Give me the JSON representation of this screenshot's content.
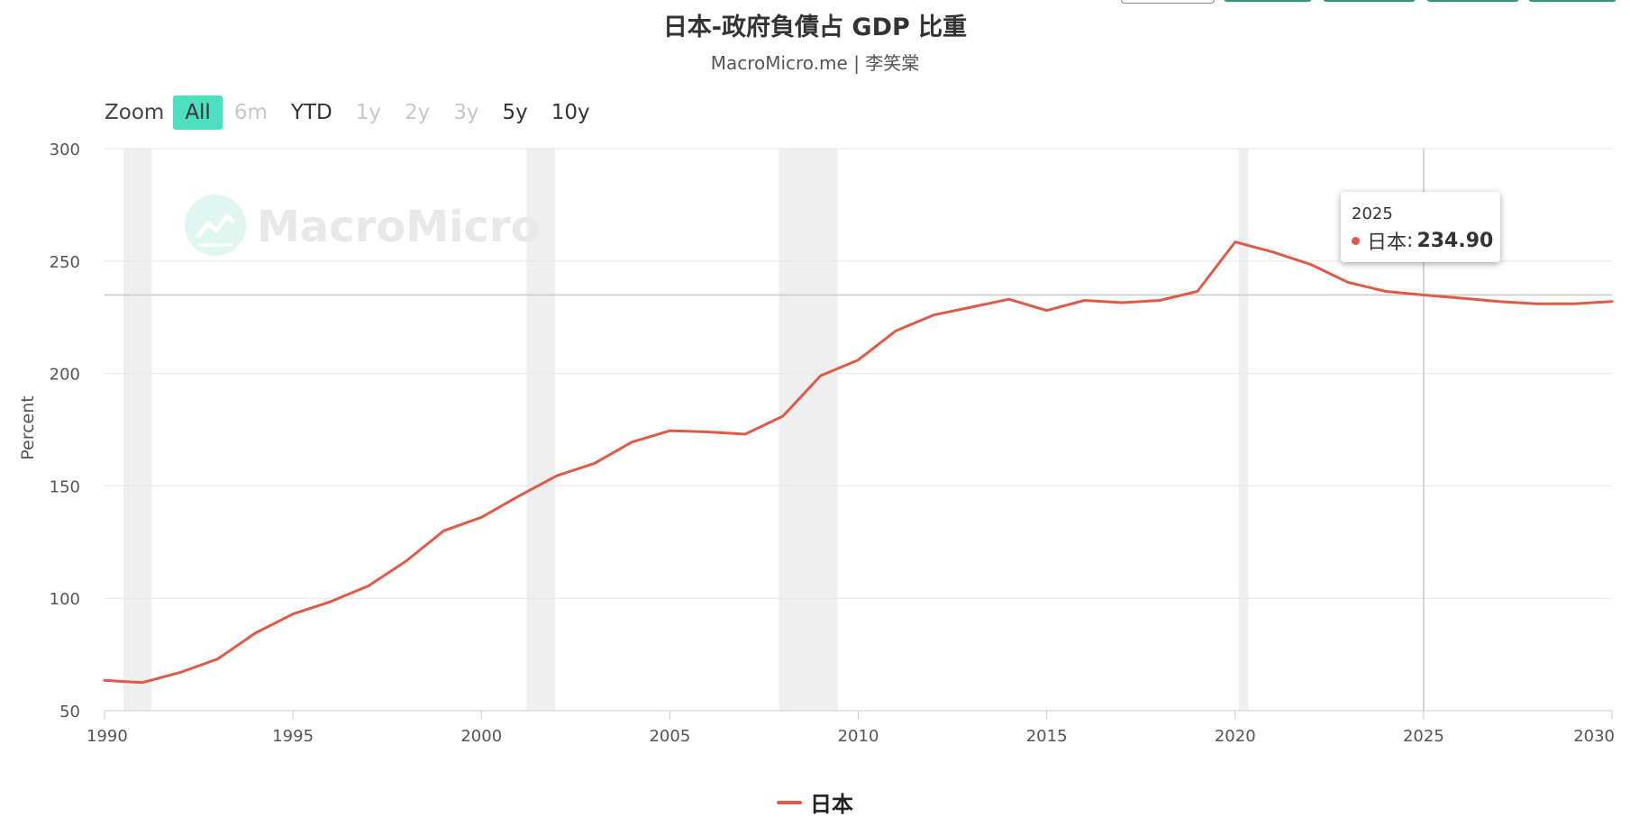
{
  "title": "日本-政府負債占 GDP 比重",
  "subtitle": "MacroMicro.me | 李笑棠",
  "zoom": {
    "label": "Zoom",
    "buttons": [
      {
        "label": "All",
        "state": "active"
      },
      {
        "label": "6m",
        "state": "disabled"
      },
      {
        "label": "YTD",
        "state": "normal"
      },
      {
        "label": "1y",
        "state": "disabled"
      },
      {
        "label": "2y",
        "state": "disabled"
      },
      {
        "label": "3y",
        "state": "disabled"
      },
      {
        "label": "5y",
        "state": "normal"
      },
      {
        "label": "10y",
        "state": "normal"
      }
    ]
  },
  "watermark": "MacroMicro",
  "colors": {
    "series": "#e05a47",
    "active_zoom": "#4ddfbf",
    "grid": "#e6e6e6",
    "recession": "#efefef",
    "top_buttons": "#2a9d6f"
  },
  "tooltip": {
    "year": "2025",
    "series": "日本",
    "value": "234.90"
  },
  "chart_data": {
    "type": "line",
    "ylabel": "Percent",
    "xlabel": "",
    "xlim": [
      1990,
      2030
    ],
    "ylim": [
      50,
      300
    ],
    "yticks": [
      50,
      100,
      150,
      200,
      250,
      300
    ],
    "xticks": [
      1990,
      1995,
      2000,
      2005,
      2010,
      2015,
      2020,
      2025,
      2030
    ],
    "grid": true,
    "legend_position": "bottom-center",
    "recession_bands": [
      [
        1990.5,
        1991.25
      ],
      [
        2001.2,
        2001.95
      ],
      [
        2007.9,
        2009.45
      ],
      [
        2020.1,
        2020.35
      ]
    ],
    "crosshair": {
      "x": 2025,
      "y": 234.9
    },
    "series": [
      {
        "name": "日本",
        "x": [
          1990,
          1991,
          1992,
          1993,
          1994,
          1995,
          1996,
          1997,
          1998,
          1999,
          2000,
          2001,
          2002,
          2003,
          2004,
          2005,
          2006,
          2007,
          2008,
          2009,
          2010,
          2011,
          2012,
          2013,
          2014,
          2015,
          2016,
          2017,
          2018,
          2019,
          2020,
          2021,
          2022,
          2023,
          2024,
          2025,
          2026,
          2027,
          2028,
          2029,
          2030
        ],
        "values": [
          63.5,
          62.5,
          67,
          73,
          84.5,
          93,
          98.5,
          105.5,
          116.5,
          130,
          136,
          145.5,
          154.5,
          160,
          169.5,
          174.5,
          174,
          173,
          181,
          199,
          206,
          219,
          226,
          229.5,
          233,
          228,
          232.5,
          231.5,
          232.5,
          236.5,
          258.5,
          254,
          248.5,
          240.5,
          236.5,
          234.9,
          233.5,
          232,
          231,
          231,
          232
        ]
      }
    ]
  }
}
